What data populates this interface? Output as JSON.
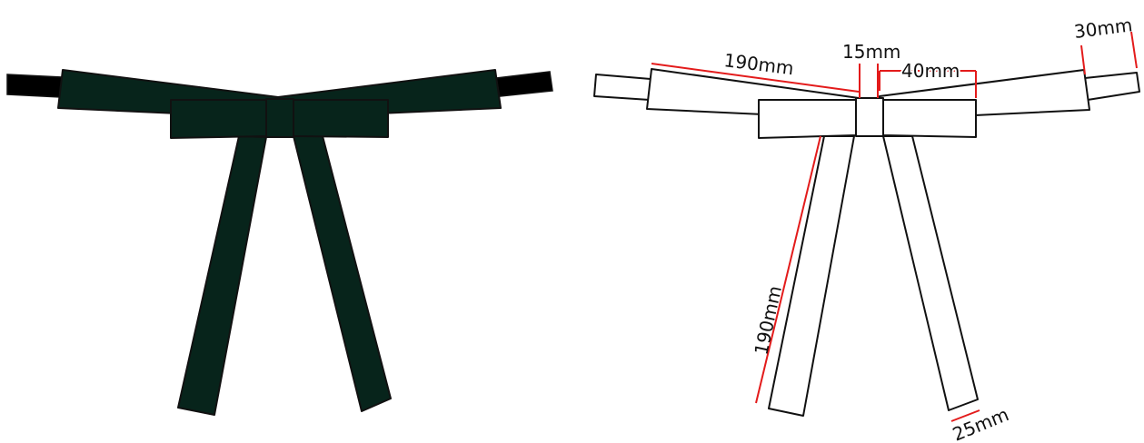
{
  "colors": {
    "ribbon_fill": "#07241b",
    "strap_fill": "#000000",
    "outline": "#111111",
    "dimension_line": "#e31b1b",
    "blank_fill": "#ffffff"
  },
  "dimensions": {
    "wing_length": "190mm",
    "knot_width": "15mm",
    "bow_half_width": "40mm",
    "strap_width": "30mm",
    "tail_length": "190mm",
    "tail_width": "25mm"
  }
}
